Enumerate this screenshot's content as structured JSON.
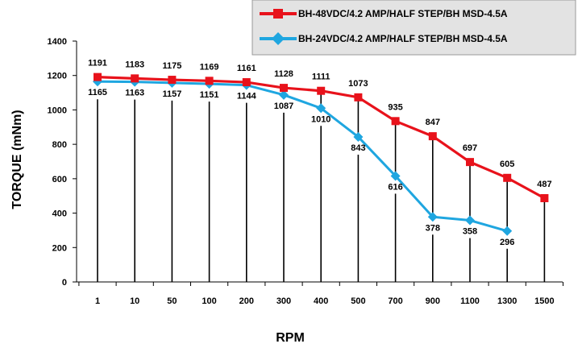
{
  "chart_data": {
    "type": "line",
    "title": "",
    "xlabel": "RPM",
    "ylabel": "TORQUE (mNm)",
    "categories": [
      "1",
      "10",
      "50",
      "100",
      "200",
      "300",
      "400",
      "500",
      "700",
      "900",
      "1100",
      "1300",
      "1500"
    ],
    "ylim": [
      0,
      1400
    ],
    "yticks": [
      0,
      200,
      400,
      600,
      800,
      1000,
      1200,
      1400
    ],
    "grid": false,
    "drop_lines": true,
    "legend_position": "top-right",
    "series": [
      {
        "name": "BH-48VDC/4.2 AMP/HALF STEP/BH MSD-4.5A",
        "color": "#e8121b",
        "marker": "square",
        "values": [
          1191,
          1183,
          1175,
          1169,
          1161,
          1128,
          1111,
          1073,
          935,
          847,
          697,
          605,
          487
        ]
      },
      {
        "name": "BH-24VDC/4.2 AMP/HALF STEP/BH MSD-4.5A",
        "color": "#1fa6e0",
        "marker": "diamond",
        "values": [
          1165,
          1163,
          1157,
          1151,
          1144,
          1087,
          1010,
          843,
          616,
          378,
          358,
          296,
          null
        ]
      }
    ]
  }
}
